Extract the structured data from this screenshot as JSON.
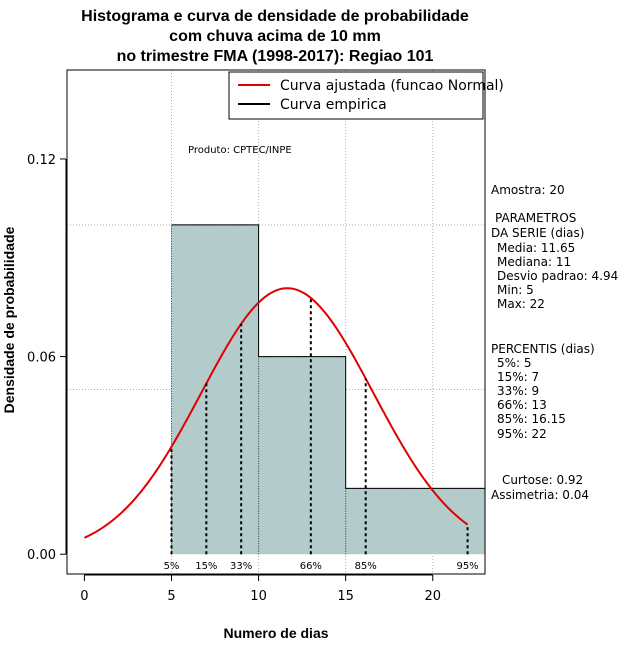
{
  "chart_data": {
    "type": "bar",
    "title_lines": [
      "Histograma e curva de densidade de probabilidade",
      "com chuva acima de 10 mm",
      "no trimestre FMA (1998-2017): Regiao 101"
    ],
    "xlabel": "Numero de dias",
    "ylabel": "Densidade de probabilidade",
    "xlim": [
      -1,
      23
    ],
    "ylim": [
      -0.006,
      0.147
    ],
    "x_ticks": [
      0,
      5,
      10,
      15,
      20
    ],
    "y_ticks": [
      0.0,
      0.06,
      0.12
    ],
    "y_tick_labels": [
      "0.00",
      "0.06",
      "0.12"
    ],
    "grid": true,
    "grid_x": [
      5,
      10,
      15,
      20
    ],
    "grid_y": [
      0.05,
      0.1
    ],
    "histogram_bins": [
      {
        "from": 5,
        "to": 10,
        "density": 0.1
      },
      {
        "from": 10,
        "to": 15,
        "density": 0.06
      },
      {
        "from": 15,
        "to": 23,
        "density": 0.02
      }
    ],
    "bar_color": "#b3cbcb",
    "normal_curve": {
      "mean": 11.65,
      "sd": 4.94,
      "x_from": 0,
      "x_to": 22,
      "color": "#e00000"
    },
    "empirical_curve": [
      {
        "x": 5,
        "y": 0.1
      },
      {
        "x": 10,
        "y": 0.1
      },
      {
        "x": 10,
        "y": 0.06
      },
      {
        "x": 15,
        "y": 0.06
      },
      {
        "x": 15,
        "y": 0.02
      },
      {
        "x": 23,
        "y": 0.02
      }
    ],
    "percentile_lines": [
      {
        "label": "5%",
        "x": 5
      },
      {
        "label": "15%",
        "x": 7
      },
      {
        "label": "33%",
        "x": 9
      },
      {
        "label": "66%",
        "x": 13
      },
      {
        "label": "85%",
        "x": 16.15
      },
      {
        "label": "95%",
        "x": 22
      }
    ],
    "legend": {
      "placement": "top-right",
      "entries": [
        {
          "label": "Curva ajustada (funcao Normal)",
          "color": "#e00000"
        },
        {
          "label": "Curva empirica",
          "color": "#000000"
        }
      ]
    },
    "annotation": "Produto: CPTEC/INPE"
  },
  "side_panel": {
    "sample": "Amostra: 20",
    "params_title_1": "PARAMETROS",
    "params_title_2": "DA SERIE (dias)",
    "params": [
      "Media: 11.65",
      "Mediana: 11",
      "Desvio padrao: 4.94",
      "Min: 5",
      "Max: 22"
    ],
    "percentis_title": "PERCENTIS (dias)",
    "percentis": [
      "5%: 5",
      "15%: 7",
      "33%: 9",
      "66%: 13",
      "85%: 16.15",
      "95%: 22"
    ],
    "curtose": "Curtose: 0.92",
    "assimetria": "Assimetria: 0.04"
  }
}
